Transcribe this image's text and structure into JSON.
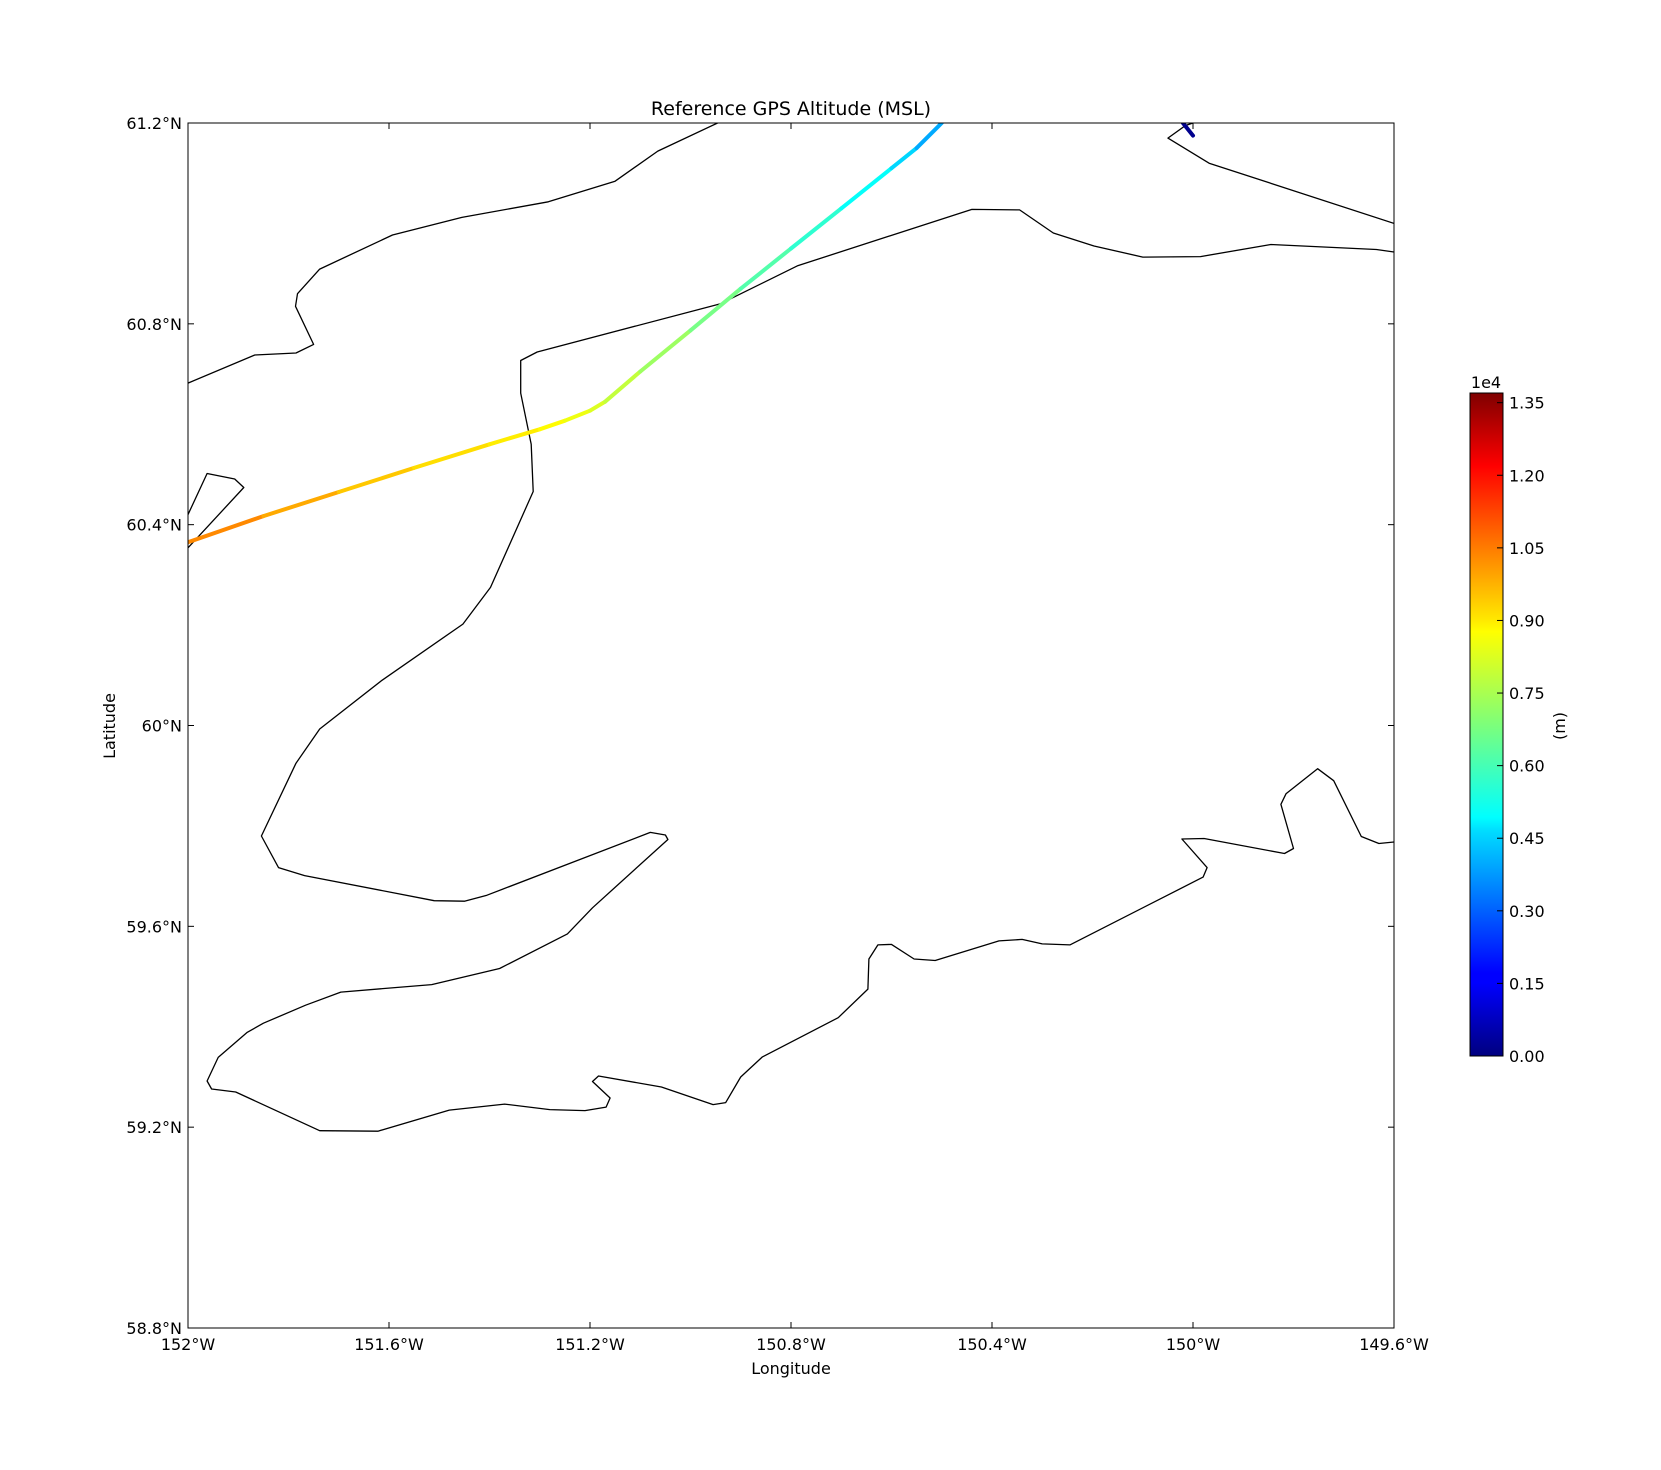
{
  "title": "Reference GPS Altitude (MSL)",
  "xlabel": "Longitude",
  "ylabel": "Latitude",
  "extent": {
    "lon": [
      -152.0,
      -149.6
    ],
    "lat": [
      58.8,
      61.2
    ]
  },
  "x_ticks": [
    {
      "value": -152.0,
      "label": "152°W"
    },
    {
      "value": -151.6,
      "label": "151.6°W"
    },
    {
      "value": -151.2,
      "label": "151.2°W"
    },
    {
      "value": -150.8,
      "label": "150.8°W"
    },
    {
      "value": -150.4,
      "label": "150.4°W"
    },
    {
      "value": -150.0,
      "label": "150°W"
    },
    {
      "value": -149.6,
      "label": "149.6°W"
    }
  ],
  "y_ticks": [
    {
      "value": 61.2,
      "label": "61.2°N"
    },
    {
      "value": 60.8,
      "label": "60.8°N"
    },
    {
      "value": 60.4,
      "label": "60.4°N"
    },
    {
      "value": 60.0,
      "label": "60°N"
    },
    {
      "value": 59.6,
      "label": "59.6°N"
    },
    {
      "value": 59.2,
      "label": "59.2°N"
    },
    {
      "value": 58.8,
      "label": "58.8°N"
    }
  ],
  "colorbar": {
    "label": "(m)",
    "exponent_label": "1e4",
    "min": 0,
    "max": 13700,
    "colormap": "jet",
    "ticks": [
      {
        "value": 0,
        "label": "0.00"
      },
      {
        "value": 1500,
        "label": "0.15"
      },
      {
        "value": 3000,
        "label": "0.30"
      },
      {
        "value": 4500,
        "label": "0.45"
      },
      {
        "value": 6000,
        "label": "0.60"
      },
      {
        "value": 7500,
        "label": "0.75"
      },
      {
        "value": 9000,
        "label": "0.90"
      },
      {
        "value": 10500,
        "label": "1.05"
      },
      {
        "value": 12000,
        "label": "1.20"
      },
      {
        "value": 13500,
        "label": "1.35"
      }
    ]
  },
  "coastlines": [
    [
      [
        -152.0,
        60.682
      ],
      [
        -151.867,
        60.738
      ],
      [
        -151.785,
        60.742
      ],
      [
        -151.75,
        60.759
      ],
      [
        -151.786,
        60.835
      ],
      [
        -151.782,
        60.86
      ],
      [
        -151.738,
        60.909
      ],
      [
        -151.593,
        60.977
      ],
      [
        -151.455,
        61.012
      ],
      [
        -151.283,
        61.043
      ],
      [
        -151.15,
        61.084
      ],
      [
        -151.065,
        61.144
      ],
      [
        -150.946,
        61.2
      ]
    ],
    [
      [
        -152.0,
        60.42
      ],
      [
        -151.962,
        60.502
      ],
      [
        -151.907,
        60.491
      ],
      [
        -151.889,
        60.474
      ],
      [
        -152.0,
        60.354
      ]
    ],
    [
      [
        -149.6,
        60.943
      ],
      [
        -149.635,
        60.948
      ],
      [
        -149.845,
        60.958
      ],
      [
        -149.985,
        60.934
      ],
      [
        -150.1,
        60.933
      ],
      [
        -150.197,
        60.955
      ],
      [
        -150.278,
        60.981
      ],
      [
        -150.345,
        61.027
      ],
      [
        -150.44,
        61.028
      ],
      [
        -150.786,
        60.916
      ],
      [
        -150.94,
        60.84
      ],
      [
        -151.305,
        60.744
      ],
      [
        -151.338,
        60.727
      ],
      [
        -151.338,
        60.662
      ],
      [
        -151.317,
        60.56
      ],
      [
        -151.313,
        60.466
      ],
      [
        -151.398,
        60.275
      ],
      [
        -151.453,
        60.202
      ],
      [
        -151.614,
        60.09
      ],
      [
        -151.738,
        59.993
      ],
      [
        -151.785,
        59.925
      ],
      [
        -151.854,
        59.78
      ],
      [
        -151.82,
        59.717
      ],
      [
        -151.768,
        59.701
      ],
      [
        -151.51,
        59.651
      ],
      [
        -151.45,
        59.65
      ],
      [
        -151.405,
        59.662
      ],
      [
        -151.08,
        59.787
      ],
      [
        -151.05,
        59.782
      ],
      [
        -151.045,
        59.773
      ],
      [
        -151.195,
        59.637
      ],
      [
        -151.245,
        59.585
      ],
      [
        -151.38,
        59.516
      ],
      [
        -151.515,
        59.484
      ],
      [
        -151.696,
        59.469
      ],
      [
        -151.766,
        59.443
      ],
      [
        -151.85,
        59.407
      ],
      [
        -151.882,
        59.389
      ],
      [
        -151.94,
        59.339
      ],
      [
        -151.962,
        59.292
      ],
      [
        -151.953,
        59.276
      ],
      [
        -151.905,
        59.27
      ],
      [
        -151.738,
        59.193
      ],
      [
        -151.622,
        59.192
      ],
      [
        -151.48,
        59.234
      ],
      [
        -151.37,
        59.246
      ],
      [
        -151.28,
        59.235
      ],
      [
        -151.21,
        59.233
      ],
      [
        -151.168,
        59.24
      ],
      [
        -151.16,
        59.258
      ],
      [
        -151.195,
        59.291
      ],
      [
        -151.183,
        59.302
      ],
      [
        -151.058,
        59.28
      ],
      [
        -150.955,
        59.245
      ],
      [
        -150.93,
        59.249
      ],
      [
        -150.9,
        59.3
      ],
      [
        -150.857,
        59.34
      ],
      [
        -150.706,
        59.418
      ],
      [
        -150.647,
        59.475
      ],
      [
        -150.645,
        59.535
      ],
      [
        -150.627,
        59.563
      ],
      [
        -150.6,
        59.564
      ],
      [
        -150.555,
        59.535
      ],
      [
        -150.513,
        59.532
      ],
      [
        -150.386,
        59.571
      ],
      [
        -150.34,
        59.574
      ],
      [
        -150.3,
        59.565
      ],
      [
        -150.245,
        59.563
      ],
      [
        -149.98,
        59.698
      ],
      [
        -149.972,
        59.717
      ],
      [
        -150.022,
        59.774
      ],
      [
        -149.978,
        59.775
      ],
      [
        -149.818,
        59.745
      ],
      [
        -149.8,
        59.755
      ],
      [
        -149.825,
        59.843
      ],
      [
        -149.815,
        59.864
      ],
      [
        -149.752,
        59.914
      ],
      [
        -149.72,
        59.89
      ],
      [
        -149.665,
        59.779
      ],
      [
        -149.63,
        59.765
      ],
      [
        -149.6,
        59.768
      ]
    ],
    [
      [
        -149.6,
        61.0
      ],
      [
        -149.968,
        61.12
      ],
      [
        -150.05,
        61.17
      ],
      [
        -150.015,
        61.195
      ],
      [
        -150.0,
        61.2
      ]
    ]
  ],
  "flight_track": [
    [
      -152.0,
      60.365,
      10400
    ],
    [
      -151.85,
      60.417,
      9900
    ],
    [
      -151.7,
      60.465,
      9500
    ],
    [
      -151.55,
      60.513,
      9100
    ],
    [
      -151.4,
      60.56,
      8900
    ],
    [
      -151.3,
      60.59,
      8700
    ],
    [
      -151.25,
      60.607,
      8500
    ],
    [
      -151.2,
      60.627,
      8200
    ],
    [
      -151.17,
      60.645,
      8000
    ],
    [
      -151.1,
      60.705,
      7500
    ],
    [
      -151.0,
      60.787,
      7000
    ],
    [
      -150.9,
      60.87,
      6500
    ],
    [
      -150.8,
      60.95,
      6000
    ],
    [
      -150.7,
      61.03,
      5500
    ],
    [
      -150.6,
      61.11,
      4900
    ],
    [
      -150.55,
      61.15,
      4300
    ],
    [
      -150.5,
      61.2,
      3700
    ]
  ],
  "flight_track_end": [
    [
      -150.02,
      61.2,
      300
    ],
    [
      -150.0,
      61.175,
      100
    ]
  ]
}
